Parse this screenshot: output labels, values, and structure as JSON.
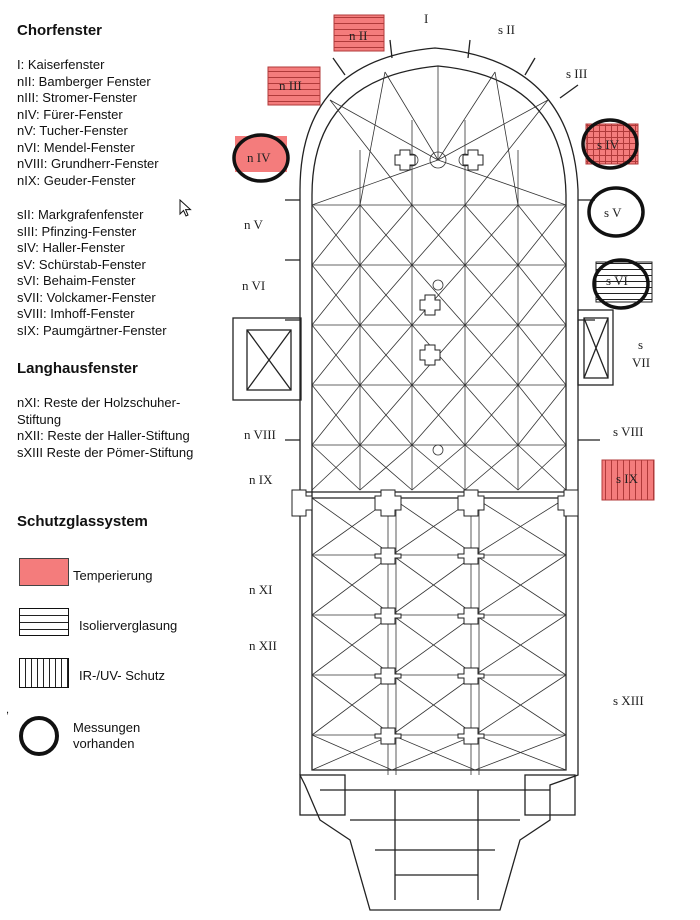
{
  "chorfenster": {
    "heading": "Chorfenster",
    "items": [
      "I: Kaiserfenster",
      "nII: Bamberger Fenster",
      "nIII: Stromer-Fenster",
      "nIV: Fürer-Fenster",
      "nV: Tucher-Fenster",
      "nVI: Mendel-Fenster",
      "nVIII: Grundherr-Fenster",
      "nIX: Geuder-Fenster"
    ],
    "items_s": [
      "sII: Markgrafenfenster",
      "sIII: Pfinzing-Fenster",
      "sIV: Haller-Fenster",
      "sV: Schürstab-Fenster",
      "sVI: Behaim-Fenster",
      "sVII: Volckamer-Fenster",
      "sVIII: Imhoff-Fenster",
      "sIX: Paumgärtner-Fenster"
    ]
  },
  "langhausfenster": {
    "heading": "Langhausfenster",
    "items": [
      "nXI: Reste der Holzschuher-Stiftung",
      "nXII: Reste der Haller-Stiftung",
      "sXIII Reste der Pömer-Stiftung"
    ]
  },
  "schutzglas": {
    "heading": "Schutzglassystem",
    "temperierung": "Temperierung",
    "isolier": "Isolierverglasung",
    "iruv": "IR-/UV- Schutz",
    "messungen_1": "Messungen",
    "messungen_2": "vorhanden",
    "stray_mark": ","
  },
  "plan_labels": {
    "I": "I",
    "sII": "s II",
    "sIII": "s III",
    "nII": "n II",
    "nIII": "n III",
    "nIV": "n IV",
    "nV": "n V",
    "nVI": "n VI",
    "nVIII": "n VIII",
    "nIX": "n IX",
    "nXI": "n XI",
    "nXII": "n XII",
    "sIV": "s IV",
    "sV": "s V",
    "sVI": "s VI",
    "sVII_a": "s",
    "sVII_b": "VII",
    "sVIII": "s VIII",
    "sIX": "s IX",
    "sXIII": "s XIII"
  },
  "colors": {
    "temperierung": "#f47c7c",
    "line": "#222222",
    "circle": "#111111"
  },
  "icons": [
    "mouse-cursor-icon"
  ]
}
